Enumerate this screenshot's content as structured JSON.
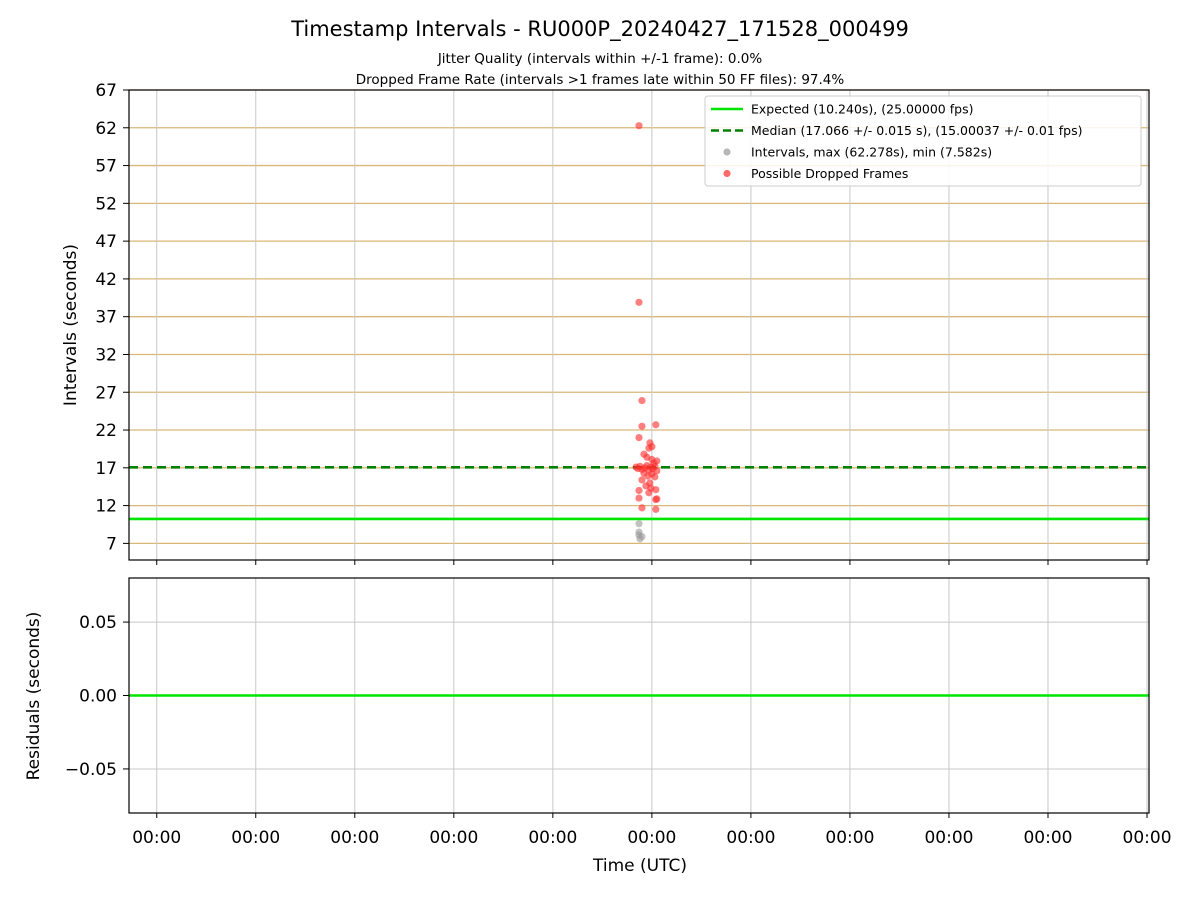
{
  "chart_data": [
    {
      "type": "scatter",
      "title": "Timestamp Intervals - RU000P_20240427_171528_000499",
      "subtitle_lines": [
        "Jitter Quality (intervals within +/-1 frame): 0.0%",
        "Dropped Frame Rate (intervals >1 frames late within 50 FF files): 97.4%"
      ],
      "ylabel": "Intervals (seconds)",
      "xlabel": "",
      "ylim": [
        4.8,
        67
      ],
      "xlim": [
        -0.28,
        10.02
      ],
      "yticks": [
        7,
        12,
        17,
        22,
        27,
        32,
        37,
        42,
        47,
        52,
        57,
        62,
        67
      ],
      "xticks": [
        0,
        1,
        2,
        3,
        4,
        5,
        6,
        7,
        8,
        9,
        10
      ],
      "xtick_labels": [],
      "grid": {
        "x": true,
        "y": true,
        "y_color": "#d9b877",
        "x_color": "#c8c8c8"
      },
      "legend_position": "top-right",
      "legend": [
        {
          "label": "Expected (10.240s), (25.00000 fps)",
          "style": "line",
          "color": "#00e600"
        },
        {
          "label": "Median (17.066 +/- 0.015 s), (15.00037 +/- 0.01 fps)",
          "style": "dashed",
          "color": "#008000"
        },
        {
          "label": "Intervals, max (62.278s), min (7.582s)",
          "style": "dot",
          "color": "#999999"
        },
        {
          "label": "Possible Dropped Frames",
          "style": "dot",
          "color": "#ff2a2a"
        }
      ],
      "hlines": [
        {
          "name": "Expected",
          "y": 10.24,
          "color": "#00e600",
          "style": "solid"
        },
        {
          "name": "Median",
          "y": 17.066,
          "color": "#008000",
          "style": "dashed"
        }
      ],
      "series": [
        {
          "name": "Intervals",
          "color": "#999999",
          "points": [
            [
              4.87,
              9.6
            ],
            [
              4.87,
              8.5
            ],
            [
              4.87,
              8.1
            ],
            [
              4.88,
              7.6
            ],
            [
              4.9,
              7.9
            ]
          ]
        },
        {
          "name": "Possible Dropped Frames",
          "color": "#ff2a2a",
          "points": [
            [
              4.87,
              62.278
            ],
            [
              4.87,
              38.9
            ],
            [
              4.9,
              25.9
            ],
            [
              5.04,
              22.7
            ],
            [
              4.9,
              22.5
            ],
            [
              4.87,
              21.0
            ],
            [
              4.98,
              20.3
            ],
            [
              4.97,
              19.6
            ],
            [
              5.0,
              19.8
            ],
            [
              4.92,
              18.8
            ],
            [
              4.95,
              18.4
            ],
            [
              5.0,
              18.1
            ],
            [
              5.02,
              17.6
            ],
            [
              5.05,
              17.9
            ],
            [
              4.84,
              17.1
            ],
            [
              4.86,
              16.9
            ],
            [
              4.88,
              17.2
            ],
            [
              4.9,
              16.8
            ],
            [
              4.93,
              17.0
            ],
            [
              4.95,
              17.3
            ],
            [
              4.97,
              16.7
            ],
            [
              4.99,
              17.1
            ],
            [
              5.01,
              16.9
            ],
            [
              5.03,
              17.2
            ],
            [
              5.05,
              16.6
            ],
            [
              4.92,
              16.3
            ],
            [
              4.96,
              15.9
            ],
            [
              5.0,
              16.2
            ],
            [
              5.03,
              15.8
            ],
            [
              4.9,
              15.4
            ],
            [
              4.98,
              15.0
            ],
            [
              4.94,
              14.6
            ],
            [
              4.99,
              14.3
            ],
            [
              5.04,
              14.1
            ],
            [
              4.97,
              13.7
            ],
            [
              4.87,
              14.0
            ],
            [
              4.87,
              13.0
            ],
            [
              5.04,
              12.8
            ],
            [
              5.05,
              12.9
            ],
            [
              4.9,
              11.7
            ],
            [
              5.04,
              11.5
            ]
          ]
        }
      ]
    },
    {
      "type": "line",
      "title": "",
      "ylabel": "Residuals (seconds)",
      "xlabel": "Time (UTC)",
      "ylim": [
        -0.08,
        0.08
      ],
      "xlim": [
        -0.28,
        10.02
      ],
      "yticks": [
        -0.05,
        0.0,
        0.05
      ],
      "ytick_labels": [
        "−0.05",
        "0.00",
        "0.05"
      ],
      "xticks": [
        0,
        1,
        2,
        3,
        4,
        5,
        6,
        7,
        8,
        9,
        10
      ],
      "xtick_labels": [
        "00:00",
        "00:00",
        "00:00",
        "00:00",
        "00:00",
        "00:00",
        "00:00",
        "00:00",
        "00:00",
        "00:00",
        "00:00"
      ],
      "grid": {
        "x": true,
        "y": true,
        "y_color": "#c8c8c8",
        "x_color": "#c8c8c8"
      },
      "hlines": [
        {
          "name": "Residual",
          "y": 0.0,
          "color": "#00e600",
          "style": "solid"
        }
      ],
      "series": []
    }
  ]
}
